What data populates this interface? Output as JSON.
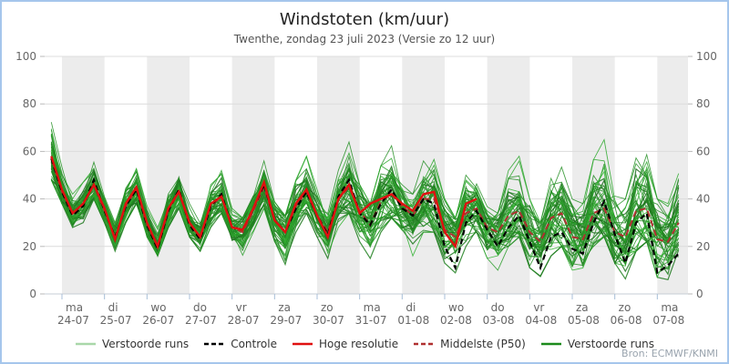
{
  "window": {
    "title": "Windstoten (km/uur)",
    "subtitle": "Twenthe, zondag 23 juli 2023 (Versie zo 12 uur)",
    "source": "Bron: ECMWF/KNMI"
  },
  "legend": {
    "items": [
      {
        "label": "Verstoorde runs",
        "color": "#a9d7a9",
        "dashed": false
      },
      {
        "label": "Controle",
        "color": "#000000",
        "dashed": true
      },
      {
        "label": "Hoge resolutie",
        "color": "#e01010",
        "dashed": false
      },
      {
        "label": "Middelste (P50)",
        "color": "#b03030",
        "dashed": true
      },
      {
        "label": "Verstoorde runs",
        "color": "#1c8a1c",
        "dashed": false
      }
    ]
  },
  "chart_data": {
    "type": "line",
    "title": "Windstoten (km/uur)",
    "subtitle": "Twenthe, zondag 23 juli 2023 (Versie zo 12 uur)",
    "ylabel": "km/uur",
    "ylim": [
      0,
      100
    ],
    "yticks": [
      0,
      20,
      40,
      60,
      80,
      100
    ],
    "sample_interval_hours": 6,
    "first_sample_offset_hours": -6,
    "x_categories": [
      {
        "weekday": "ma",
        "date": "24-07"
      },
      {
        "weekday": "di",
        "date": "25-07"
      },
      {
        "weekday": "wo",
        "date": "26-07"
      },
      {
        "weekday": "do",
        "date": "27-07"
      },
      {
        "weekday": "vr",
        "date": "28-07"
      },
      {
        "weekday": "za",
        "date": "29-07"
      },
      {
        "weekday": "zo",
        "date": "30-07"
      },
      {
        "weekday": "ma",
        "date": "31-07"
      },
      {
        "weekday": "di",
        "date": "01-08"
      },
      {
        "weekday": "wo",
        "date": "02-08"
      },
      {
        "weekday": "do",
        "date": "03-08"
      },
      {
        "weekday": "vr",
        "date": "04-08"
      },
      {
        "weekday": "za",
        "date": "05-08"
      },
      {
        "weekday": "zo",
        "date": "06-08"
      },
      {
        "weekday": "ma",
        "date": "07-08"
      }
    ],
    "series": [
      {
        "name": "Controle",
        "color": "#000000",
        "style": "dashed",
        "values": [
          57,
          43,
          33,
          37,
          48,
          35,
          24,
          37,
          44,
          29,
          19,
          35,
          44,
          29,
          23,
          37,
          42,
          28,
          27,
          36,
          46,
          31,
          26,
          36,
          43,
          33,
          25,
          41,
          48,
          34,
          29,
          38,
          44,
          36,
          33,
          40,
          38,
          20,
          11,
          30,
          35,
          27,
          20,
          28,
          33,
          22,
          11,
          24,
          26,
          19,
          17,
          30,
          39,
          25,
          13,
          30,
          34,
          9,
          12,
          17
        ]
      },
      {
        "name": "Hoge resolutie",
        "color": "#e01010",
        "style": "solid",
        "values": [
          58,
          44,
          34,
          38,
          46,
          36,
          23,
          38,
          45,
          30,
          20,
          36,
          43,
          30,
          24,
          38,
          41,
          28,
          27,
          36,
          47,
          31,
          26,
          38,
          44,
          33,
          24,
          40,
          46,
          34,
          38,
          40,
          42,
          38,
          35,
          42,
          43,
          26,
          20,
          38,
          40
        ]
      },
      {
        "name": "Middelste (P50)",
        "color": "#b03030",
        "style": "dashed",
        "values": [
          57,
          43,
          34,
          38,
          46,
          35,
          24,
          37,
          44,
          29,
          20,
          35,
          43,
          29,
          24,
          37,
          41,
          28,
          26,
          35,
          45,
          31,
          26,
          37,
          43,
          33,
          26,
          40,
          45,
          35,
          29,
          39,
          42,
          37,
          33,
          40,
          40,
          27,
          24,
          34,
          36,
          28,
          26,
          33,
          35,
          26,
          22,
          32,
          34,
          24,
          23,
          34,
          36,
          26,
          24,
          35,
          36,
          23,
          22,
          30
        ]
      }
    ],
    "ensemble": {
      "name": "Verstoorde runs",
      "count": 50,
      "color_range": [
        "#4aa84a",
        "#0e6e0e"
      ],
      "min": [
        48,
        38,
        27,
        30,
        40,
        30,
        18,
        30,
        38,
        24,
        16,
        28,
        36,
        24,
        18,
        28,
        34,
        22,
        14,
        26,
        36,
        22,
        10,
        26,
        34,
        24,
        15,
        28,
        34,
        22,
        15,
        26,
        32,
        22,
        16,
        26,
        26,
        13,
        8,
        20,
        26,
        15,
        10,
        20,
        24,
        11,
        6,
        16,
        20,
        10,
        8,
        20,
        24,
        13,
        6,
        18,
        22,
        7,
        6,
        14
      ],
      "max": [
        81,
        56,
        42,
        47,
        56,
        45,
        30,
        46,
        54,
        38,
        28,
        45,
        52,
        38,
        30,
        46,
        52,
        36,
        32,
        45,
        56,
        40,
        33,
        48,
        58,
        44,
        34,
        52,
        64,
        46,
        38,
        54,
        64,
        48,
        42,
        56,
        58,
        40,
        32,
        50,
        56,
        42,
        34,
        52,
        58,
        40,
        30,
        52,
        64,
        45,
        38,
        60,
        76,
        50,
        40,
        62,
        68,
        40,
        38,
        57
      ]
    },
    "layout": {
      "band_color": "#ececec",
      "grid": true,
      "legend_position": "bottom",
      "border_color": "#a5c6ec",
      "axis_label_color": "#666666"
    }
  }
}
